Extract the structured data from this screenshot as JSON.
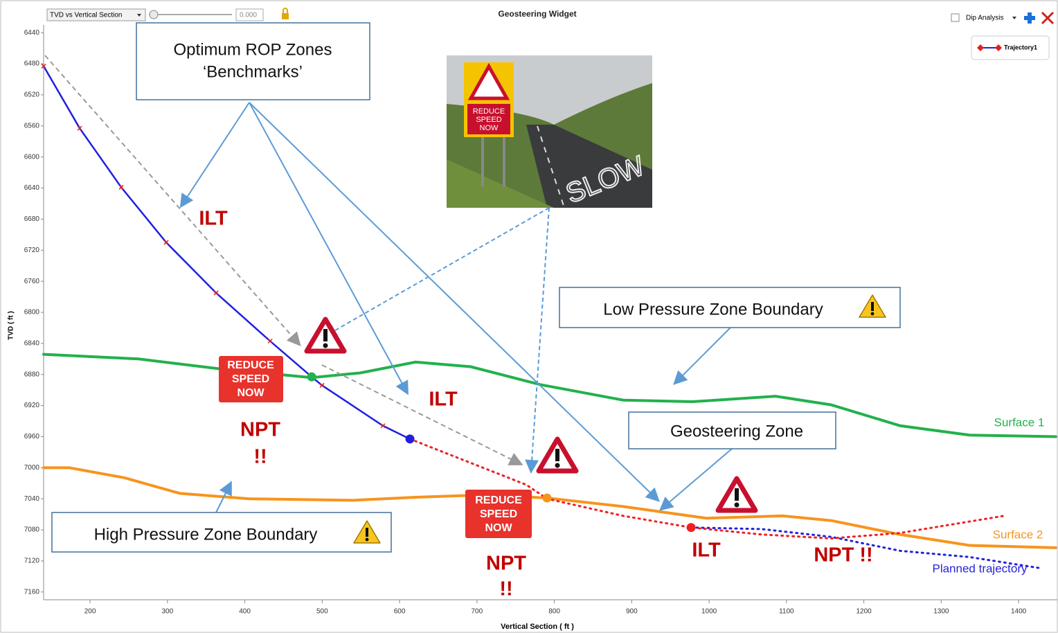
{
  "toolbar": {
    "view_select": "TVD vs Vertical Section",
    "slider_value": "0.000",
    "title": "Geosteering Widget",
    "dip_analysis": "Dip Analysis"
  },
  "chart_data": {
    "type": "line",
    "xlabel": "Vertical Section ( ft )",
    "ylabel": "TVD ( ft )",
    "xlim": [
      140,
      1450
    ],
    "ylim": [
      6430,
      7170
    ],
    "y_inverted": true,
    "xticks": [
      200,
      300,
      400,
      500,
      600,
      700,
      800,
      900,
      1000,
      1100,
      1200,
      1300,
      1400
    ],
    "yticks": [
      6440,
      6480,
      6520,
      6560,
      6600,
      6640,
      6680,
      6720,
      6760,
      6800,
      6840,
      6880,
      6920,
      6960,
      7000,
      7040,
      7080,
      7120,
      7160
    ],
    "legend_position": "upper right",
    "series": [
      {
        "name": "Trajectory1",
        "color": "#1f1fe0",
        "style": "solid",
        "width": 2.5,
        "markers": true,
        "legend": true,
        "x": [
          140,
          186.6,
          240.3,
          298.4,
          362.9,
          432.7,
          486.4,
          499.8,
          578.5,
          613.4
        ],
        "values": [
          6483,
          6563,
          6639,
          6710,
          6775,
          6837,
          6883,
          6894,
          6946,
          6963
        ]
      },
      {
        "name": "Surface 1",
        "color": "#22b14c",
        "style": "solid",
        "width": 4,
        "x": [
          140,
          262.6,
          370,
          486.4,
          549,
          620.6,
          692,
          781.7,
          889,
          978.5,
          1085.9,
          1157.5,
          1247,
          1336.5,
          1448
        ],
        "values": [
          6854,
          6860,
          6873,
          6884,
          6878,
          6864,
          6870,
          6893,
          6913,
          6915,
          6908,
          6919,
          6946,
          6958,
          6960
        ]
      },
      {
        "name": "Surface 2",
        "color": "#f7941d",
        "style": "solid",
        "width": 4,
        "x": [
          140,
          173,
          244.7,
          316,
          405.8,
          540,
          620.6,
          710,
          790.6,
          889,
          996.4,
          1094.9,
          1157.5,
          1247,
          1336.5,
          1448
        ],
        "values": [
          7000,
          7000,
          7013,
          7033,
          7040,
          7042,
          7038,
          7035,
          7039,
          7050,
          7065,
          7062,
          7068,
          7086,
          7100,
          7103
        ]
      },
      {
        "name": "Planned trajectory",
        "color": "#2323d8",
        "style": "dotted",
        "width": 3,
        "x": [
          976.7,
          1068,
          1157.5,
          1247,
          1336.5,
          1426
        ],
        "values": [
          7077,
          7079,
          7089,
          7107,
          7115,
          7129
        ]
      },
      {
        "color": "#f02020",
        "style": "dotted",
        "width": 3,
        "x": [
          613.4,
          763.8,
          790.6,
          889,
          976.7,
          1068,
          1157.5,
          1247,
          1381
        ],
        "values": [
          6963,
          7022,
          7040,
          7062,
          7077,
          7086,
          7091,
          7084,
          7062
        ]
      }
    ],
    "points": [
      {
        "x": 486.4,
        "y": 6883,
        "color": "#22b14c"
      },
      {
        "x": 613.4,
        "y": 6963,
        "color": "#1f1fe0"
      },
      {
        "x": 790.6,
        "y": 7039,
        "color": "#f7941d"
      },
      {
        "x": 976.7,
        "y": 7077,
        "color": "#f02020"
      }
    ]
  },
  "annotations": {
    "optimum": [
      "Optimum ROP Zones",
      "‘Benchmarks’"
    ],
    "low_pressure": "Low Pressure Zone Boundary",
    "geosteering": "Geosteering Zone",
    "high_pressure": "High Pressure Zone Boundary",
    "ilt": [
      "ILT",
      "ILT",
      "ILT"
    ],
    "npt_stacked": [
      [
        "NPT",
        "!!"
      ],
      [
        "NPT",
        "!!"
      ]
    ],
    "npt_inline": "NPT !!",
    "reduce_speed": [
      [
        "REDUCE",
        "SPEED",
        "NOW"
      ],
      [
        "REDUCE",
        "SPEED",
        "NOW"
      ]
    ],
    "photo_sign": [
      "REDUCE",
      "SPEED",
      "NOW"
    ],
    "photo_road": "SLOW"
  }
}
